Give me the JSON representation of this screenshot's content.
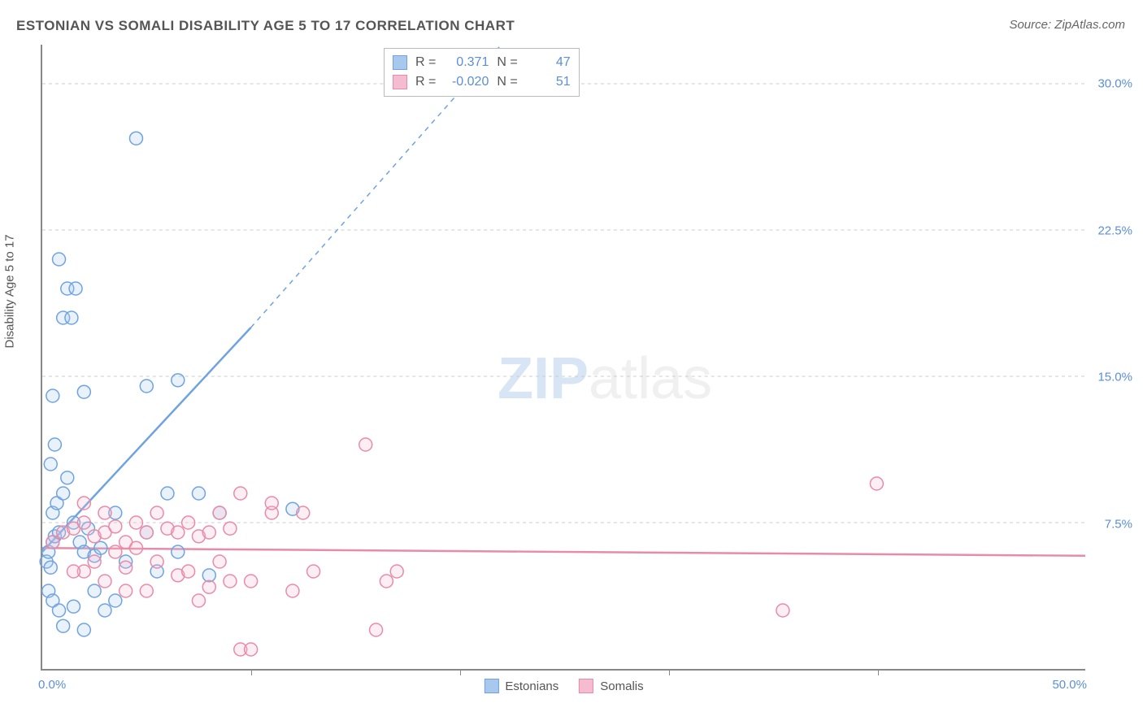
{
  "title": "ESTONIAN VS SOMALI DISABILITY AGE 5 TO 17 CORRELATION CHART",
  "source": "Source: ZipAtlas.com",
  "ylabel": "Disability Age 5 to 17",
  "watermark_bold": "ZIP",
  "watermark_light": "atlas",
  "chart": {
    "type": "scatter",
    "xlim": [
      0,
      50
    ],
    "ylim": [
      0,
      32
    ],
    "yticks": [
      7.5,
      15.0,
      22.5,
      30.0
    ],
    "ytick_labels": [
      "7.5%",
      "15.0%",
      "22.5%",
      "30.0%"
    ],
    "xticks": [
      10,
      20,
      30,
      40
    ],
    "x_left_label": "0.0%",
    "x_right_label": "50.0%",
    "background_color": "#ffffff",
    "grid_color": "#cccccc",
    "axis_color": "#888888",
    "marker_radius": 8,
    "marker_stroke_width": 1.5,
    "marker_fill_opacity": 0.25,
    "series": [
      {
        "name": "Estonians",
        "color_stroke": "#6fa3e0",
        "color_fill": "#a8c8ed",
        "r_value": "0.371",
        "n_value": "47",
        "trend": {
          "x1": 0,
          "y1": 6.0,
          "x2": 10,
          "y2": 17.5,
          "dash_x2": 22,
          "dash_y2": 32
        },
        "points": [
          [
            0.2,
            5.5
          ],
          [
            0.3,
            6.0
          ],
          [
            0.4,
            5.2
          ],
          [
            0.5,
            6.5
          ],
          [
            0.6,
            6.8
          ],
          [
            0.8,
            7.0
          ],
          [
            0.5,
            8.0
          ],
          [
            0.7,
            8.5
          ],
          [
            1.0,
            9.0
          ],
          [
            1.2,
            9.8
          ],
          [
            0.4,
            10.5
          ],
          [
            0.6,
            11.5
          ],
          [
            1.5,
            7.5
          ],
          [
            1.8,
            6.5
          ],
          [
            2.0,
            6.0
          ],
          [
            2.2,
            7.2
          ],
          [
            2.5,
            5.8
          ],
          [
            2.8,
            6.2
          ],
          [
            0.3,
            4.0
          ],
          [
            0.5,
            3.5
          ],
          [
            0.8,
            3.0
          ],
          [
            1.0,
            2.2
          ],
          [
            1.5,
            3.2
          ],
          [
            2.0,
            2.0
          ],
          [
            2.5,
            4.0
          ],
          [
            3.0,
            3.0
          ],
          [
            3.5,
            3.5
          ],
          [
            0.5,
            14.0
          ],
          [
            2.0,
            14.2
          ],
          [
            1.2,
            19.5
          ],
          [
            1.6,
            19.5
          ],
          [
            1.0,
            18.0
          ],
          [
            1.4,
            18.0
          ],
          [
            0.8,
            21.0
          ],
          [
            4.5,
            27.2
          ],
          [
            5.0,
            14.5
          ],
          [
            6.5,
            14.8
          ],
          [
            3.5,
            8.0
          ],
          [
            4.0,
            5.5
          ],
          [
            5.0,
            7.0
          ],
          [
            6.0,
            9.0
          ],
          [
            7.5,
            9.0
          ],
          [
            8.5,
            8.0
          ],
          [
            6.5,
            6.0
          ],
          [
            12.0,
            8.2
          ],
          [
            8.0,
            4.8
          ],
          [
            5.5,
            5.0
          ]
        ]
      },
      {
        "name": "Somalis",
        "color_stroke": "#e88ba8",
        "color_fill": "#f5bccf",
        "r_value": "-0.020",
        "n_value": "51",
        "trend": {
          "x1": 0,
          "y1": 6.2,
          "x2": 50,
          "y2": 5.8
        },
        "points": [
          [
            0.5,
            6.5
          ],
          [
            1.0,
            7.0
          ],
          [
            1.5,
            7.2
          ],
          [
            2.0,
            7.5
          ],
          [
            2.5,
            6.8
          ],
          [
            3.0,
            7.0
          ],
          [
            3.5,
            7.3
          ],
          [
            4.0,
            6.5
          ],
          [
            4.5,
            7.5
          ],
          [
            5.0,
            7.0
          ],
          [
            5.5,
            8.0
          ],
          [
            6.0,
            7.2
          ],
          [
            6.5,
            7.0
          ],
          [
            7.0,
            7.5
          ],
          [
            7.5,
            6.8
          ],
          [
            8.0,
            7.0
          ],
          [
            8.5,
            8.0
          ],
          [
            9.0,
            7.2
          ],
          [
            9.5,
            9.0
          ],
          [
            11.0,
            8.0
          ],
          [
            12.5,
            8.0
          ],
          [
            2.0,
            5.0
          ],
          [
            3.0,
            4.5
          ],
          [
            4.0,
            5.2
          ],
          [
            5.0,
            4.0
          ],
          [
            5.5,
            5.5
          ],
          [
            6.5,
            4.8
          ],
          [
            7.0,
            5.0
          ],
          [
            8.0,
            4.2
          ],
          [
            8.5,
            5.5
          ],
          [
            9.0,
            4.5
          ],
          [
            9.5,
            1.0
          ],
          [
            10.0,
            1.0
          ],
          [
            7.5,
            3.5
          ],
          [
            10.0,
            4.5
          ],
          [
            11.0,
            8.5
          ],
          [
            13.0,
            5.0
          ],
          [
            15.5,
            11.5
          ],
          [
            16.0,
            2.0
          ],
          [
            16.5,
            4.5
          ],
          [
            17.0,
            5.0
          ],
          [
            35.5,
            3.0
          ],
          [
            40.0,
            9.5
          ],
          [
            3.5,
            6.0
          ],
          [
            4.5,
            6.2
          ],
          [
            2.5,
            5.5
          ],
          [
            1.5,
            5.0
          ],
          [
            2.0,
            8.5
          ],
          [
            3.0,
            8.0
          ],
          [
            4.0,
            4.0
          ],
          [
            12.0,
            4.0
          ]
        ]
      }
    ]
  },
  "legend_stats": {
    "r_label": "R =",
    "n_label": "N ="
  },
  "legend_bottom": {
    "series1": "Estonians",
    "series2": "Somalis"
  }
}
